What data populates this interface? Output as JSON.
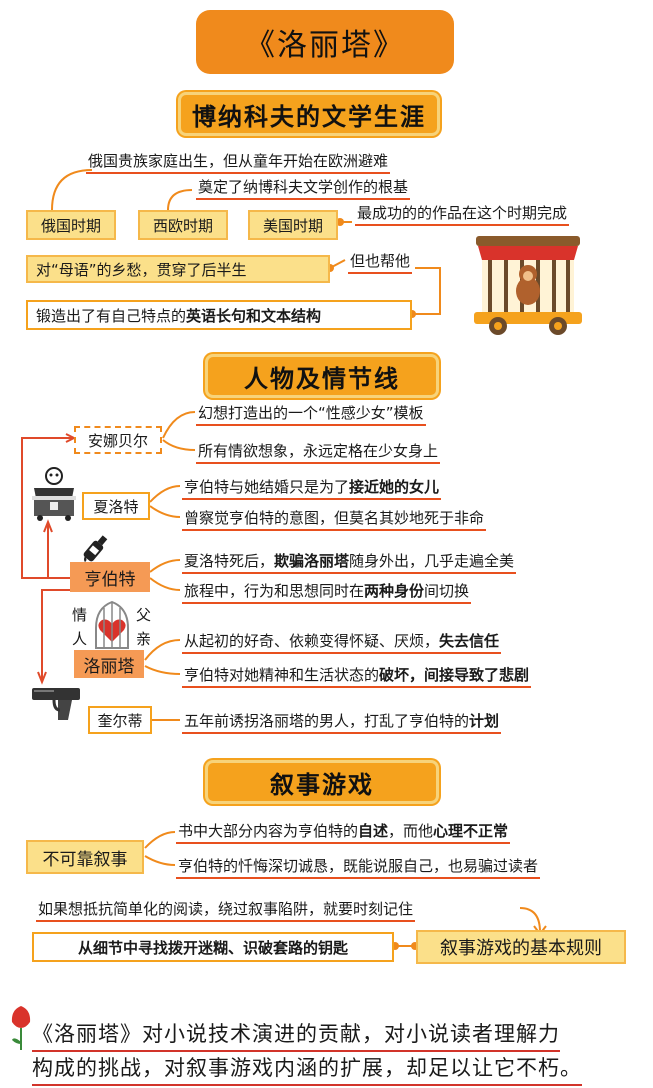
{
  "title": "《洛丽塔》",
  "section1": {
    "heading": "博纳科夫的文学生涯",
    "periods": [
      "俄国时期",
      "西欧时期",
      "美国时期"
    ],
    "notes": [
      "俄国贵族家庭出生，但从童年开始在欧洲避难",
      "奠定了纳博科夫文学创作的根基",
      "最成功的的作品在这个时期完成"
    ],
    "nostalgia": "对“母语”的乡愁，贯穿了后半生",
    "but_help": "但也帮他",
    "forge_prefix": "锻造出了有自己特点的",
    "forge_bold": "英语长句和文本结构"
  },
  "section2": {
    "heading": "人物及情节线",
    "annabel": {
      "name": "安娜贝尔",
      "lines": [
        "幻想打造出的一个“性感少女”模板",
        "所有情欲想象，永远定格在少女身上"
      ]
    },
    "charlotte": {
      "name": "夏洛特",
      "line1_prefix": "亨伯特与她结婚只是为了",
      "line1_bold": "接近她的女儿",
      "line2": "曾察觉亨伯特的意图，但莫名其妙地死于非命"
    },
    "humbert": {
      "name": "亨伯特",
      "line1_a": "夏洛特死后，",
      "line1_b": "欺骗洛丽塔",
      "line1_c": "随身外出，几乎走遍全美",
      "line2_a": "旅程中，行为和思想同时在",
      "line2_b": "两种身份",
      "line2_c": "间切换"
    },
    "cage_labels": [
      "情",
      "人",
      "父",
      "亲"
    ],
    "lolita": {
      "name": "洛丽塔",
      "line1_prefix": "从起初的好奇、依赖变得怀疑、厌烦，",
      "line1_bold": "失去信任",
      "line2_prefix": "亨伯特对她精神和生活状态的",
      "line2_bold": "破坏，间接导致了悲剧"
    },
    "quilty": {
      "name": "奎尔蒂",
      "line_prefix": "五年前诱拐洛丽塔的男人，打乱了亨伯特的",
      "line_bold": "计划"
    }
  },
  "section3": {
    "heading": "叙事游戏",
    "unreliable": "不可靠叙事",
    "line1_a": "书中大部分内容为亨伯特的",
    "line1_b": "自述",
    "line1_c": "，而他",
    "line1_d": "心理不正常",
    "line2": "亨伯特的忏悔深切诚恳，既能说服自己，也易骗过读者",
    "resist": "如果想抵抗简单化的阅读，绕过叙事陷阱，就要时刻记住",
    "key": "从细节中寻找拨开迷糊、识破套路的钥匙",
    "rule": "叙事游戏的基本规则"
  },
  "conclusion": {
    "line1": "《洛丽塔》对小说技术演进的贡献，对小说读者理解力",
    "line2": "构成的挑战，对叙事游戏内涵的扩展，却足以让它不朽。"
  },
  "colors": {
    "orange": "#f08a1c",
    "yellow": "#fbe08a",
    "red": "#d2342a",
    "peach": "#f59a55"
  },
  "icons": [
    "monkey-cage-icon",
    "treasure-chest-icon",
    "wine-bottle-icon",
    "heart-cage-icon",
    "pistol-icon",
    "tulip-icon"
  ]
}
